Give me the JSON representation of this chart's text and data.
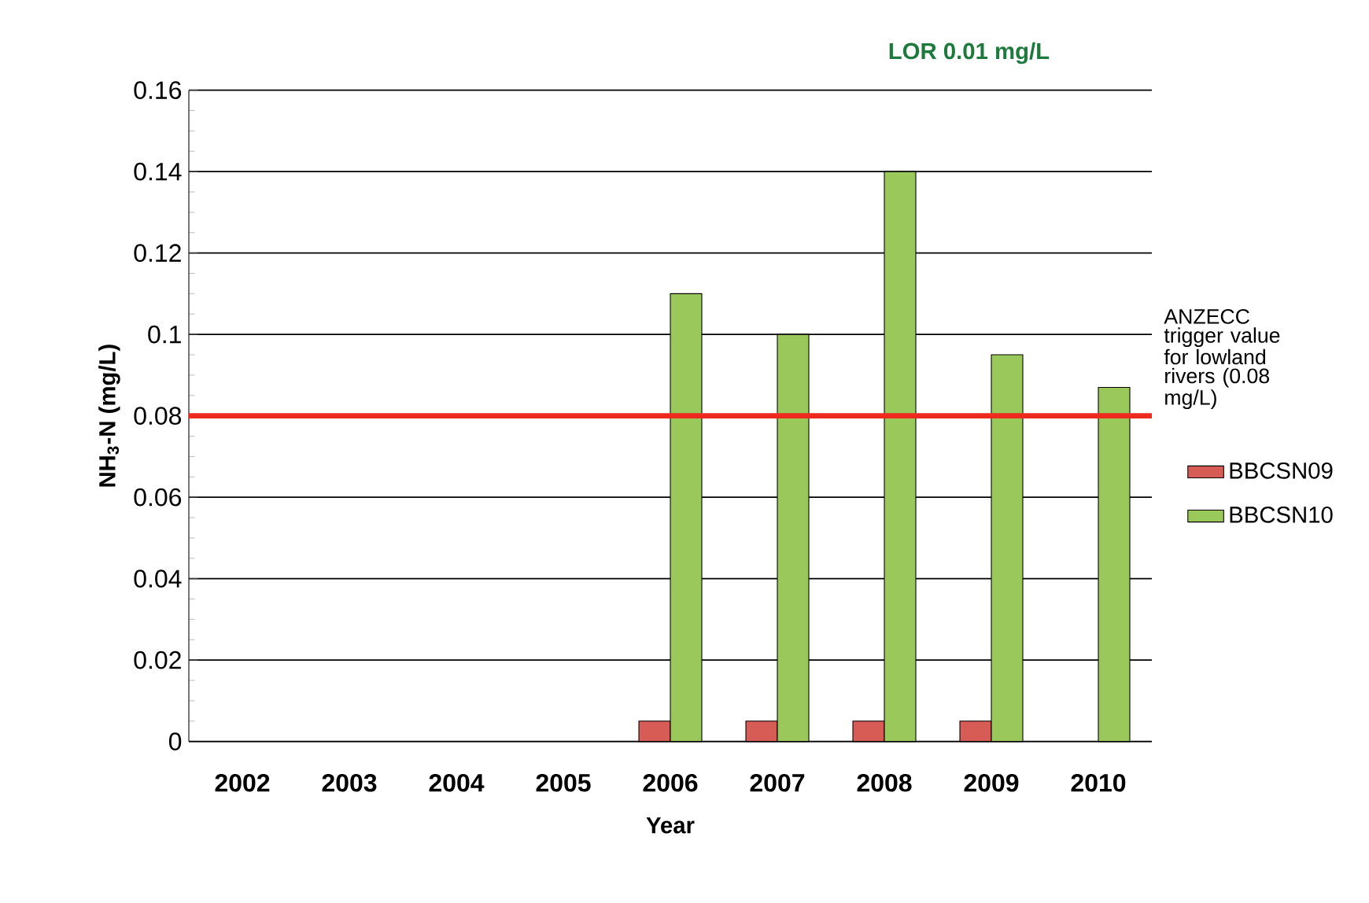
{
  "chart_data": {
    "type": "bar",
    "xlabel": "Year",
    "ylabel": "NH$_{3}$-N (mg/L)",
    "categories": [
      "2002",
      "2003",
      "2004",
      "2005",
      "2006",
      "2007",
      "2008",
      "2009",
      "2010"
    ],
    "series": [
      {
        "name": "BBCSN09",
        "color": "#d65c55",
        "values": [
          null,
          null,
          null,
          null,
          0.005,
          0.005,
          0.005,
          0.005,
          null
        ]
      },
      {
        "name": "BBCSN10",
        "color": "#9bc85a",
        "values": [
          null,
          null,
          null,
          null,
          0.11,
          0.1,
          0.14,
          0.095,
          0.087
        ]
      }
    ],
    "ylim": [
      0,
      0.16
    ],
    "yticks": [
      0,
      0.02,
      0.04,
      0.06,
      0.08,
      0.1,
      0.12,
      0.14,
      0.16
    ],
    "grid": "y",
    "legend": "right",
    "ref_lines": [
      {
        "axis": "y",
        "value": 0.08,
        "label": "ANZECC trigger value for lowland rivers (0.08 mg/L)",
        "color": "#ee2a1e"
      }
    ],
    "annotations": [
      "LOR 0.01 mg/L"
    ]
  }
}
